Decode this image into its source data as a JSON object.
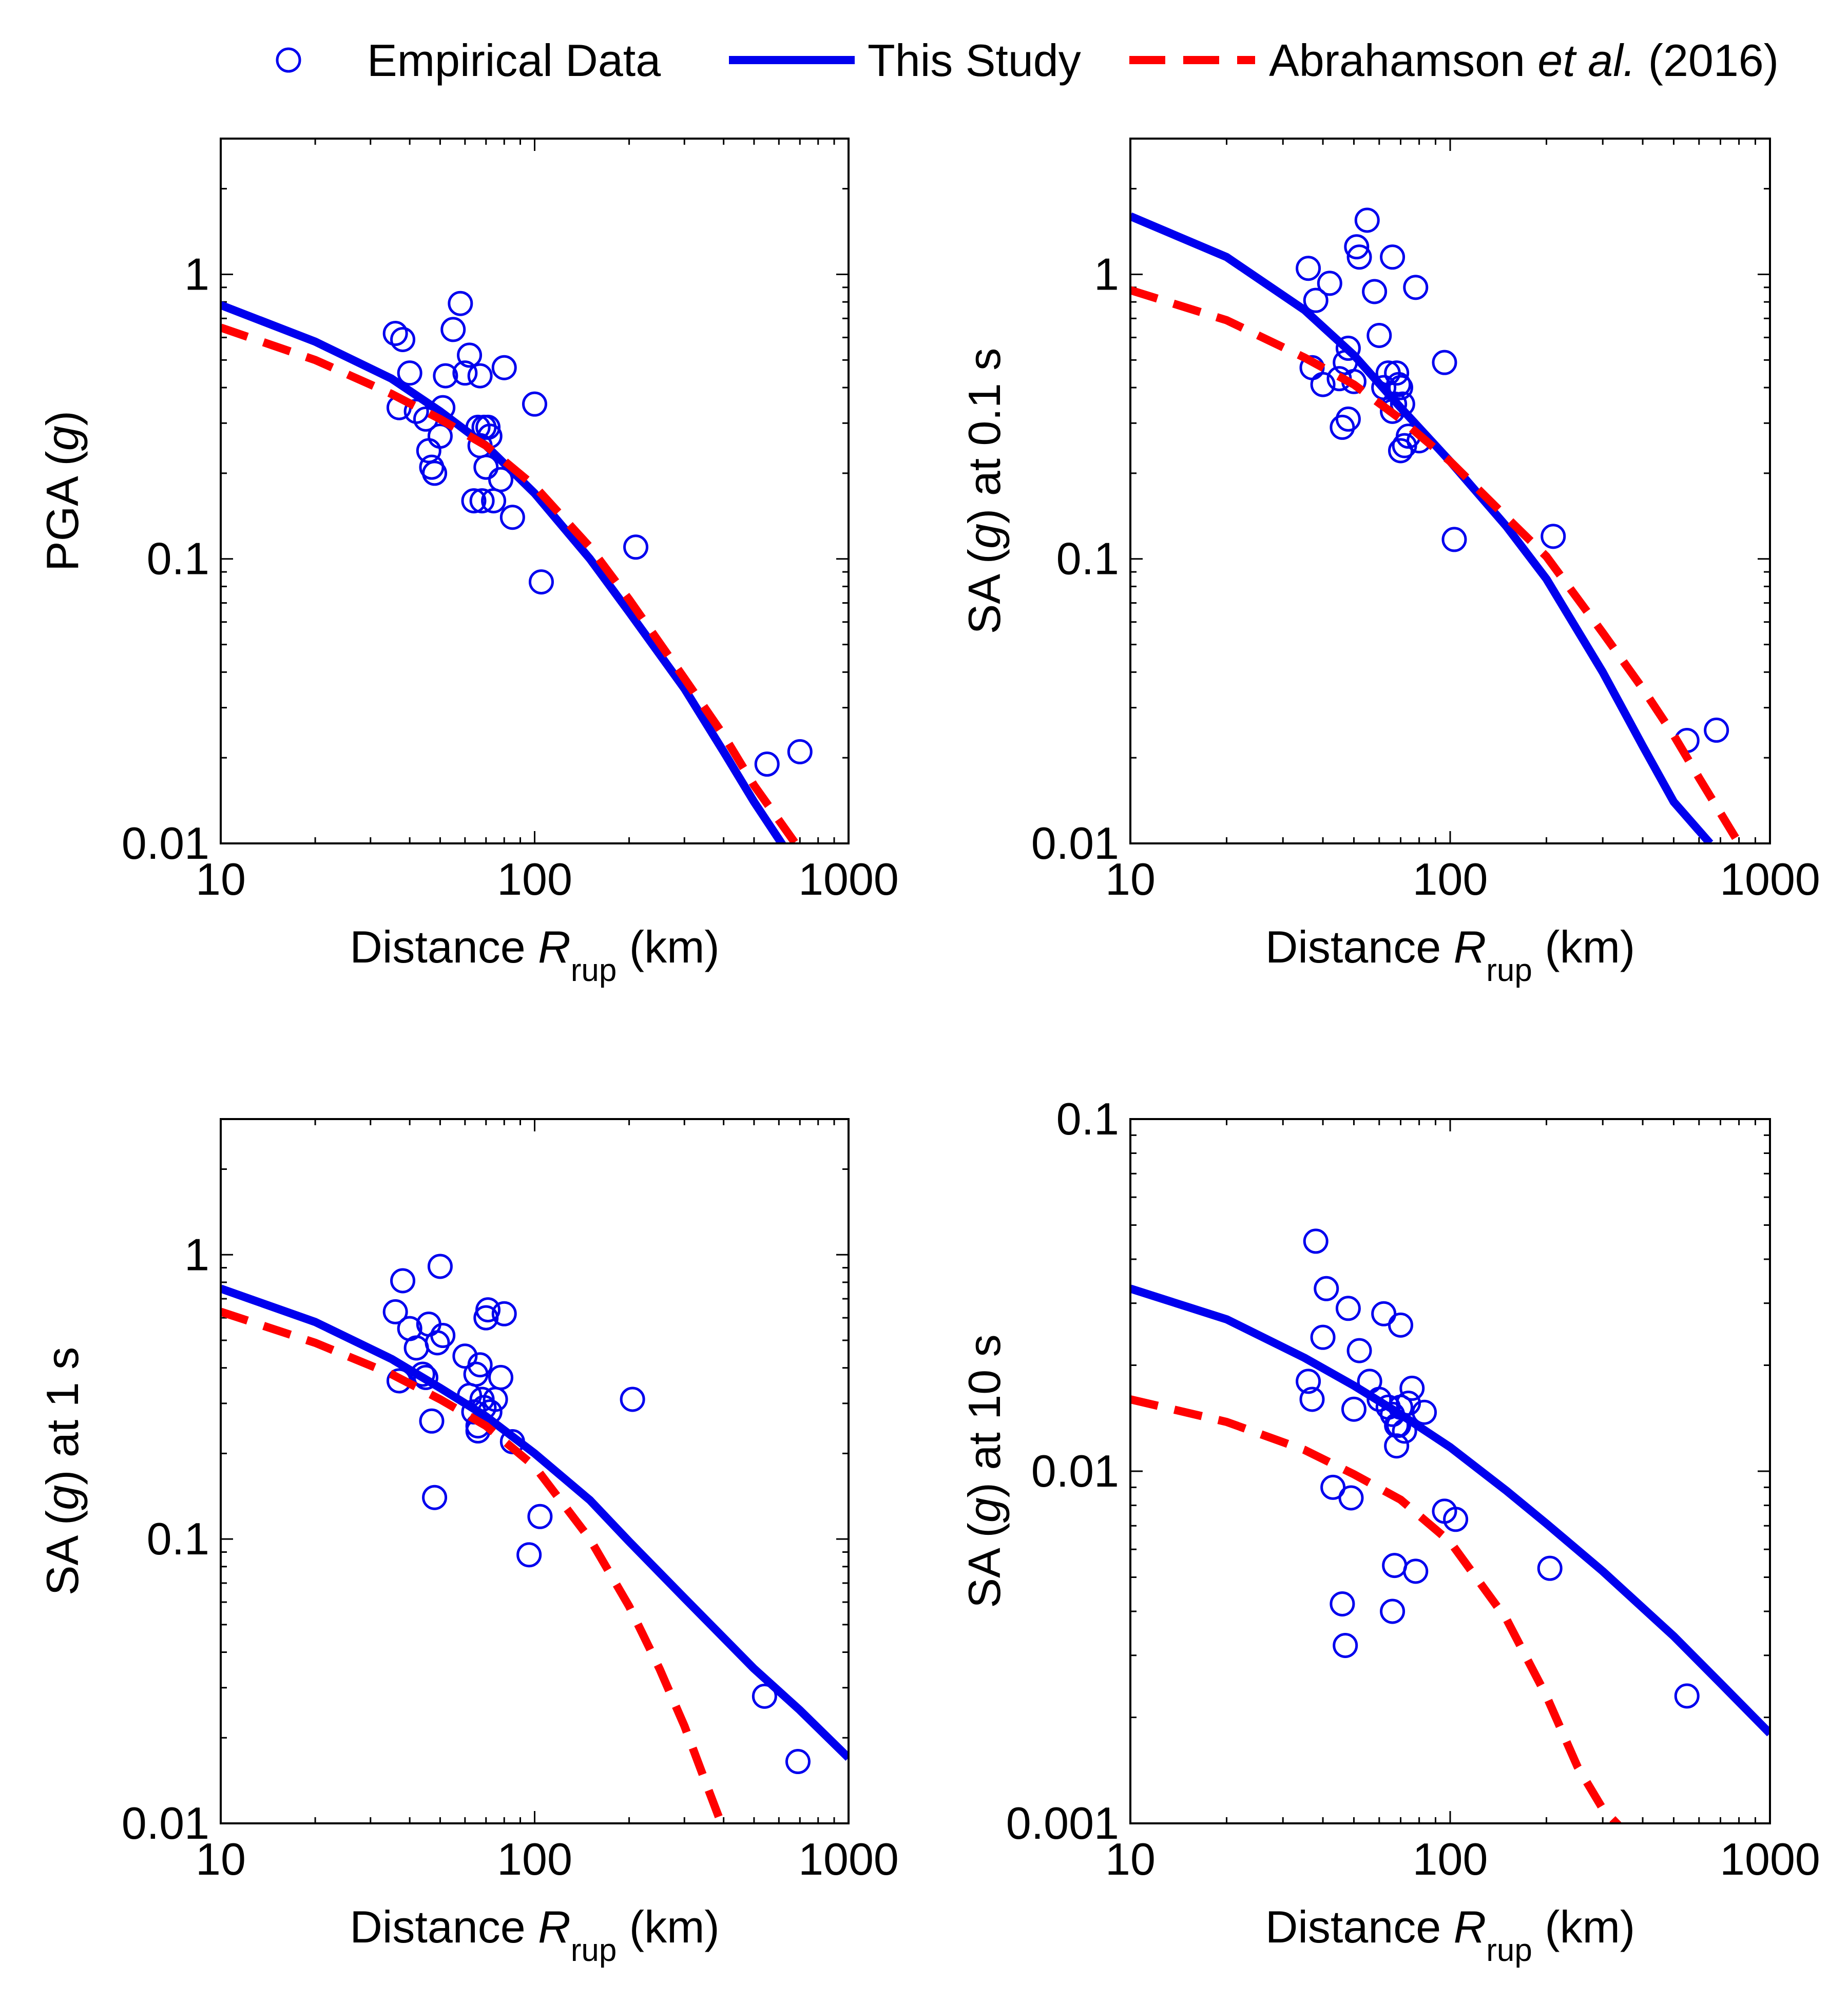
{
  "legend": {
    "items": [
      {
        "label": "Empirical Data",
        "kind": "markers",
        "color": "#0000ee"
      },
      {
        "label": "This Study",
        "kind": "solid",
        "color": "#0000ee"
      },
      {
        "label_parts": [
          "Abrahamson ",
          "et al.",
          " (2016)"
        ],
        "kind": "dashed",
        "color": "#ff0000"
      }
    ]
  },
  "colors": {
    "empirical": "#0000ee",
    "this_study": "#0000ee",
    "abrahamson": "#ff0000"
  },
  "chart_data": [
    {
      "type": "scatter",
      "panel": "top-left",
      "ylabel_parts": [
        "PGA (",
        "g",
        ")"
      ],
      "xlabel_parts": [
        "Distance ",
        "R",
        "rup",
        " (km)"
      ],
      "x_scale": "log",
      "y_scale": "log",
      "xlim": [
        10,
        1000
      ],
      "ylim": [
        0.01,
        3
      ],
      "xticks": [
        10,
        100,
        1000
      ],
      "xtick_labels": [
        "10",
        "100",
        "1000"
      ],
      "yticks": [
        0.01,
        0.1,
        1
      ],
      "ytick_labels": [
        "0.01",
        "0.1",
        "1"
      ],
      "series": [
        {
          "name": "This Study",
          "style": "solid",
          "x": [
            10,
            20,
            35,
            50,
            70,
            100,
            150,
            200,
            300,
            400,
            500,
            700
          ],
          "y": [
            0.78,
            0.58,
            0.43,
            0.33,
            0.25,
            0.17,
            0.1,
            0.065,
            0.035,
            0.021,
            0.014,
            0.008
          ]
        },
        {
          "name": "Abrahamson et al. (2016)",
          "style": "dashed",
          "x": [
            10,
            20,
            35,
            50,
            70,
            100,
            150,
            200,
            300,
            400,
            500,
            700
          ],
          "y": [
            0.65,
            0.5,
            0.38,
            0.31,
            0.25,
            0.18,
            0.11,
            0.072,
            0.038,
            0.024,
            0.016,
            0.0095
          ]
        },
        {
          "name": "Empirical Data",
          "style": "markers",
          "x": [
            36,
            37,
            38,
            40,
            42,
            45,
            46,
            47,
            48,
            50,
            51,
            52,
            55,
            58,
            60,
            62,
            64,
            66,
            67,
            67,
            68,
            69,
            70,
            71,
            72,
            74,
            78,
            80,
            85,
            100,
            105,
            210,
            550,
            700
          ],
          "y": [
            0.62,
            0.34,
            0.59,
            0.45,
            0.33,
            0.31,
            0.24,
            0.21,
            0.2,
            0.27,
            0.34,
            0.44,
            0.64,
            0.79,
            0.45,
            0.52,
            0.16,
            0.29,
            0.25,
            0.44,
            0.16,
            0.29,
            0.21,
            0.29,
            0.27,
            0.16,
            0.19,
            0.47,
            0.14,
            0.35,
            0.083,
            0.11,
            0.019,
            0.021
          ]
        }
      ]
    },
    {
      "type": "scatter",
      "panel": "top-right",
      "ylabel_parts": [
        "SA (",
        "g",
        ") at 0.1 s"
      ],
      "xlabel_parts": [
        "Distance ",
        "R",
        "rup",
        " (km)"
      ],
      "x_scale": "log",
      "y_scale": "log",
      "xlim": [
        10,
        1000
      ],
      "ylim": [
        0.01,
        3
      ],
      "xticks": [
        10,
        100,
        1000
      ],
      "xtick_labels": [
        "10",
        "100",
        "1000"
      ],
      "yticks": [
        0.01,
        0.1,
        1
      ],
      "ytick_labels": [
        "0.01",
        "0.1",
        "1"
      ],
      "series": [
        {
          "name": "This Study",
          "style": "solid",
          "x": [
            10,
            20,
            35,
            50,
            70,
            100,
            150,
            200,
            300,
            400,
            500,
            650
          ],
          "y": [
            1.6,
            1.15,
            0.75,
            0.52,
            0.34,
            0.22,
            0.13,
            0.085,
            0.04,
            0.022,
            0.014,
            0.01
          ]
        },
        {
          "name": "Abrahamson et al. (2016)",
          "style": "dashed",
          "x": [
            10,
            20,
            35,
            50,
            70,
            100,
            150,
            200,
            300,
            400,
            500,
            600,
            800
          ],
          "y": [
            0.88,
            0.69,
            0.51,
            0.41,
            0.31,
            0.22,
            0.14,
            0.102,
            0.055,
            0.035,
            0.024,
            0.017,
            0.01
          ]
        },
        {
          "name": "Empirical Data",
          "style": "markers",
          "x": [
            36,
            37,
            38,
            40,
            42,
            45,
            46,
            47,
            48,
            48,
            50,
            51,
            52,
            55,
            58,
            60,
            62,
            64,
            66,
            66,
            67,
            68,
            69,
            70,
            70,
            71,
            72,
            74,
            78,
            80,
            96,
            103,
            210,
            550,
            680
          ],
          "y": [
            1.05,
            0.47,
            0.81,
            0.41,
            0.93,
            0.43,
            0.29,
            0.49,
            0.31,
            0.55,
            0.42,
            1.25,
            1.15,
            1.55,
            0.87,
            0.61,
            0.4,
            0.45,
            1.15,
            0.33,
            0.35,
            0.45,
            0.41,
            0.4,
            0.24,
            0.35,
            0.25,
            0.27,
            0.9,
            0.26,
            0.49,
            0.117,
            0.12,
            0.023,
            0.025
          ]
        }
      ]
    },
    {
      "type": "scatter",
      "panel": "bottom-left",
      "ylabel_parts": [
        "SA (",
        "g",
        ") at 1 s"
      ],
      "xlabel_parts": [
        "Distance ",
        "R",
        "rup",
        " (km)"
      ],
      "x_scale": "log",
      "y_scale": "log",
      "xlim": [
        10,
        1000
      ],
      "ylim": [
        0.01,
        3
      ],
      "xticks": [
        10,
        100,
        1000
      ],
      "xtick_labels": [
        "10",
        "100",
        "1000"
      ],
      "yticks": [
        0.01,
        0.1,
        1
      ],
      "ytick_labels": [
        "0.01",
        "0.1",
        "1"
      ],
      "series": [
        {
          "name": "This Study",
          "style": "solid",
          "x": [
            10,
            20,
            35,
            50,
            70,
            100,
            150,
            200,
            300,
            500,
            700,
            1000
          ],
          "y": [
            0.76,
            0.58,
            0.43,
            0.34,
            0.27,
            0.2,
            0.137,
            0.098,
            0.062,
            0.035,
            0.025,
            0.017
          ]
        },
        {
          "name": "Abrahamson et al. (2016)",
          "style": "dashed",
          "x": [
            10,
            20,
            35,
            50,
            70,
            100,
            150,
            200,
            250,
            300,
            350,
            400
          ],
          "y": [
            0.63,
            0.49,
            0.38,
            0.31,
            0.25,
            0.18,
            0.1,
            0.058,
            0.035,
            0.022,
            0.014,
            0.0095
          ]
        },
        {
          "name": "Empirical Data",
          "style": "markers",
          "x": [
            36,
            37,
            38,
            40,
            42,
            44,
            45,
            46,
            47,
            48,
            49,
            50,
            51,
            60,
            62,
            64,
            65,
            66,
            66,
            67,
            68,
            69,
            70,
            71,
            72,
            75,
            78,
            80,
            85,
            96,
            104,
            205,
            540,
            690
          ],
          "y": [
            0.63,
            0.36,
            0.81,
            0.55,
            0.47,
            0.38,
            0.37,
            0.57,
            0.26,
            0.14,
            0.49,
            0.91,
            0.52,
            0.44,
            0.32,
            0.28,
            0.38,
            0.25,
            0.24,
            0.41,
            0.31,
            0.29,
            0.6,
            0.64,
            0.28,
            0.31,
            0.37,
            0.62,
            0.22,
            0.088,
            0.12,
            0.31,
            0.028,
            0.0165
          ]
        }
      ]
    },
    {
      "type": "scatter",
      "panel": "bottom-right",
      "ylabel_parts": [
        "SA (",
        "g",
        ") at 10 s"
      ],
      "xlabel_parts": [
        "Distance ",
        "R",
        "rup",
        " (km)"
      ],
      "x_scale": "log",
      "y_scale": "log",
      "xlim": [
        10,
        1000
      ],
      "ylim": [
        0.001,
        0.1
      ],
      "xticks": [
        10,
        100,
        1000
      ],
      "xtick_labels": [
        "10",
        "100",
        "1000"
      ],
      "yticks": [
        0.001,
        0.01,
        0.1
      ],
      "ytick_labels": [
        "0.001",
        "0.01",
        "0.1"
      ],
      "series": [
        {
          "name": "This Study",
          "style": "solid",
          "x": [
            10,
            20,
            35,
            50,
            70,
            100,
            150,
            200,
            300,
            500,
            700,
            1000
          ],
          "y": [
            0.033,
            0.027,
            0.021,
            0.0175,
            0.0145,
            0.0117,
            0.0088,
            0.0071,
            0.0052,
            0.0034,
            0.0025,
            0.0018
          ]
        },
        {
          "name": "Abrahamson et al. (2016)",
          "style": "dashed",
          "x": [
            10,
            20,
            35,
            50,
            70,
            100,
            150,
            200,
            250,
            300,
            350
          ],
          "y": [
            0.016,
            0.0138,
            0.0115,
            0.0098,
            0.0083,
            0.0063,
            0.0038,
            0.0023,
            0.00145,
            0.0011,
            0.00095
          ]
        },
        {
          "name": "Empirical Data",
          "style": "markers",
          "x": [
            36,
            37,
            38,
            40,
            41,
            43,
            46,
            47,
            48,
            49,
            50,
            52,
            56,
            60,
            62,
            64,
            66,
            66,
            67,
            68,
            68,
            69,
            70,
            70,
            72,
            74,
            76,
            78,
            83,
            96,
            104,
            205,
            550
          ],
          "y": [
            0.018,
            0.016,
            0.045,
            0.024,
            0.033,
            0.009,
            0.0042,
            0.0032,
            0.029,
            0.0084,
            0.015,
            0.022,
            0.018,
            0.016,
            0.028,
            0.0152,
            0.0145,
            0.004,
            0.0054,
            0.0118,
            0.0135,
            0.0135,
            0.0152,
            0.026,
            0.013,
            0.0156,
            0.0172,
            0.0052,
            0.0147,
            0.0077,
            0.0073,
            0.0053,
            0.0023
          ]
        }
      ]
    }
  ]
}
